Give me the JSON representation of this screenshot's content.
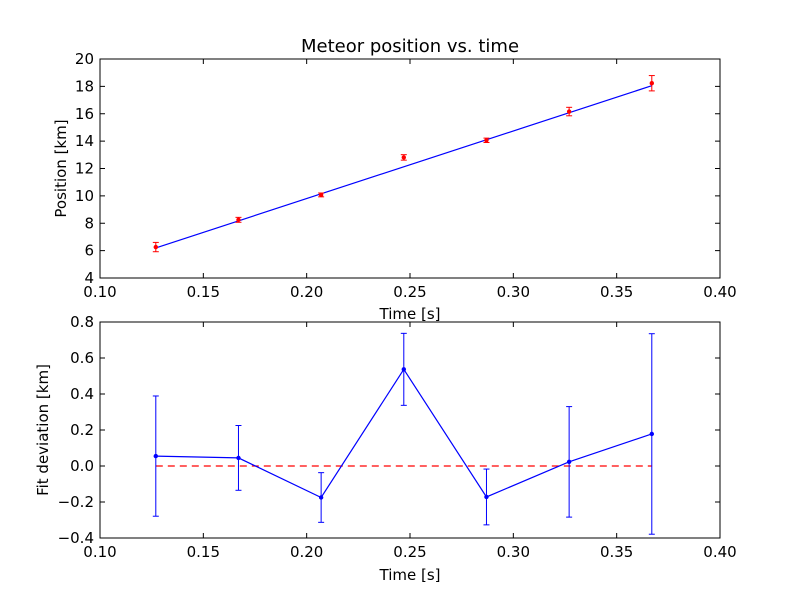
{
  "chart_data": [
    {
      "type": "line",
      "title": "Meteor position vs. time",
      "xlabel": "Time [s]",
      "ylabel": "Position [km]",
      "xlim": [
        0.1,
        0.4
      ],
      "ylim": [
        4,
        20
      ],
      "xticks": [
        0.1,
        0.15,
        0.2,
        0.25,
        0.3,
        0.35,
        0.4
      ],
      "xtick_labels": [
        "0.10",
        "0.15",
        "0.20",
        "0.25",
        "0.30",
        "0.35",
        "0.40"
      ],
      "yticks": [
        4,
        6,
        8,
        10,
        12,
        14,
        16,
        18,
        20
      ],
      "ytick_labels": [
        "4",
        "6",
        "8",
        "10",
        "12",
        "14",
        "16",
        "18",
        "20"
      ],
      "grid": false,
      "fit_line": {
        "x": [
          0.127,
          0.367
        ],
        "y": [
          6.2,
          18.05
        ],
        "color": "#0000ff"
      },
      "points": {
        "color": "#ff0000",
        "x": [
          0.127,
          0.167,
          0.207,
          0.247,
          0.287,
          0.327,
          0.367
        ],
        "y": [
          6.26,
          8.25,
          10.07,
          12.81,
          14.06,
          16.16,
          18.23
        ],
        "err": [
          0.34,
          0.18,
          0.14,
          0.2,
          0.16,
          0.31,
          0.56
        ]
      }
    },
    {
      "type": "line",
      "title": "",
      "xlabel": "Time [s]",
      "ylabel": "Fit deviation [km]",
      "xlim": [
        0.1,
        0.4
      ],
      "ylim": [
        -0.4,
        0.8
      ],
      "xticks": [
        0.1,
        0.15,
        0.2,
        0.25,
        0.3,
        0.35,
        0.4
      ],
      "xtick_labels": [
        "0.10",
        "0.15",
        "0.20",
        "0.25",
        "0.30",
        "0.35",
        "0.40"
      ],
      "yticks": [
        -0.4,
        -0.2,
        0.0,
        0.2,
        0.4,
        0.6,
        0.8
      ],
      "ytick_labels": [
        "−0.4",
        "−0.2",
        "0.0",
        "0.2",
        "0.4",
        "0.6",
        "0.8"
      ],
      "grid": false,
      "reference_line": {
        "y": 0.0,
        "x": [
          0.127,
          0.367
        ],
        "color": "#ff0000",
        "style": "dashed"
      },
      "series": {
        "color": "#0000ff",
        "x": [
          0.127,
          0.167,
          0.207,
          0.247,
          0.287,
          0.327,
          0.367
        ],
        "y": [
          0.055,
          0.045,
          -0.175,
          0.537,
          -0.172,
          0.023,
          0.178
        ],
        "err": [
          0.334,
          0.18,
          0.138,
          0.2,
          0.155,
          0.307,
          0.557
        ]
      }
    }
  ]
}
